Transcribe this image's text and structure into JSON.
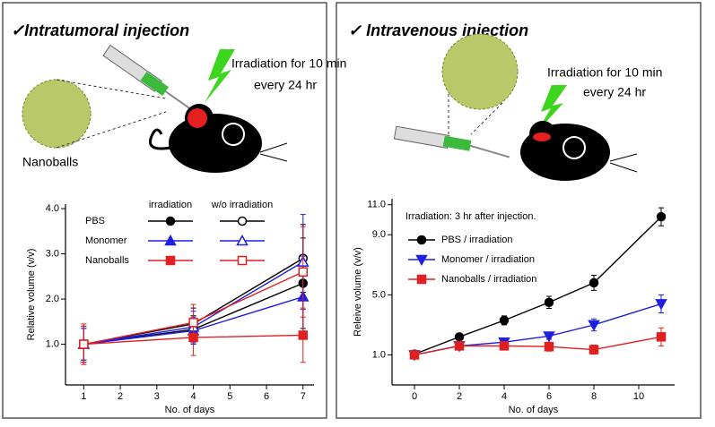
{
  "chart_data": [
    {
      "type": "line",
      "title": "✓Intratumoral injection",
      "annotations": [
        "Irradiation for 10 min",
        "every 24 hr",
        "Nanoballs"
      ],
      "x_label": "No. of days",
      "y_label": "Relative volume (v/v)",
      "legend_rows": [
        "PBS",
        "Monomer",
        "Nanoballs"
      ],
      "legend_columns": [
        "irradiation",
        "w/o irradiation"
      ],
      "x": [
        1,
        4,
        7
      ],
      "xlim": [
        0.5,
        7.3
      ],
      "xticks": [
        1,
        2,
        3,
        4,
        5,
        6,
        7
      ],
      "ylim": [
        0.1,
        4.1
      ],
      "yticks": [
        {
          "value": 1,
          "label": "1.0"
        },
        {
          "value": 2,
          "label": "2.0"
        },
        {
          "value": 3,
          "label": "3.0"
        },
        {
          "value": 4,
          "label": "4.0"
        }
      ],
      "series": [
        {
          "color": "#000000",
          "marker": "circle",
          "filled": true,
          "legend_row": 0,
          "legend_column": 0,
          "values": [
            1.0,
            1.33,
            2.35
          ],
          "errors": [
            0.35,
            0.3,
            1.0
          ]
        },
        {
          "color": "#000000",
          "marker": "circle",
          "filled": false,
          "legend_row": 0,
          "legend_column": 1,
          "values": [
            1.0,
            1.45,
            2.9
          ],
          "errors": [
            0.4,
            0.35,
            0.75
          ]
        },
        {
          "color": "#1f1fe0",
          "marker": "triangle",
          "filled": true,
          "legend_row": 1,
          "legend_column": 0,
          "values": [
            1.0,
            1.3,
            2.05
          ],
          "errors": [
            0.35,
            0.3,
            0.9
          ]
        },
        {
          "color": "#1f1fe0",
          "marker": "triangle",
          "filled": false,
          "legend_row": 1,
          "legend_column": 1,
          "values": [
            1.0,
            1.38,
            2.82
          ],
          "errors": [
            0.4,
            0.35,
            1.05
          ]
        },
        {
          "color": "#e02020",
          "marker": "square",
          "filled": true,
          "legend_row": 2,
          "legend_column": 0,
          "values": [
            1.0,
            1.15,
            1.2
          ],
          "errors": [
            0.4,
            0.4,
            0.6
          ]
        },
        {
          "color": "#e02020",
          "marker": "square",
          "filled": false,
          "legend_row": 2,
          "legend_column": 1,
          "values": [
            1.0,
            1.48,
            2.6
          ],
          "errors": [
            0.45,
            0.4,
            1.0
          ]
        }
      ]
    },
    {
      "type": "line",
      "title": "✓ Intravenous injection",
      "annotations": [
        "Irradiation for 10 min",
        "every 24 hr"
      ],
      "x_label": "No. of days",
      "y_label": "Releive volume (v/v)",
      "legend_title": "Irradiation: 3 hr after injection.",
      "x": [
        0,
        2,
        4,
        6,
        8,
        11
      ],
      "xlim": [
        -1,
        11.6
      ],
      "xticks": [
        0,
        2,
        4,
        6,
        8,
        10
      ],
      "ylim": [
        -1,
        11.4
      ],
      "yticks": [
        {
          "value": 1,
          "label": "1.0"
        },
        {
          "value": 5,
          "label": "5.0"
        },
        {
          "value": 9,
          "label": "9.0"
        },
        {
          "value": 11,
          "label": "11.0"
        }
      ],
      "series": [
        {
          "name": "PBS / irradiation",
          "color": "#000000",
          "marker": "circle",
          "filled": true,
          "values": [
            1.05,
            2.2,
            3.3,
            4.5,
            5.8,
            10.2
          ],
          "errors": [
            0.1,
            0.1,
            0.3,
            0.4,
            0.5,
            0.6
          ]
        },
        {
          "name": "Monomer / irradiation",
          "color": "#1f1fe0",
          "marker": "triangle-down",
          "filled": true,
          "values": [
            1.0,
            1.6,
            1.85,
            2.25,
            3.0,
            4.4
          ],
          "errors": [
            0.1,
            0.1,
            0.15,
            0.2,
            0.4,
            0.6
          ]
        },
        {
          "name": "Nanoballs / irradiation",
          "color": "#e02020",
          "marker": "square",
          "filled": true,
          "values": [
            1.0,
            1.6,
            1.6,
            1.55,
            1.35,
            2.2
          ],
          "errors": [
            0.15,
            0.1,
            0.15,
            0.3,
            0.3,
            0.6
          ]
        }
      ]
    }
  ]
}
